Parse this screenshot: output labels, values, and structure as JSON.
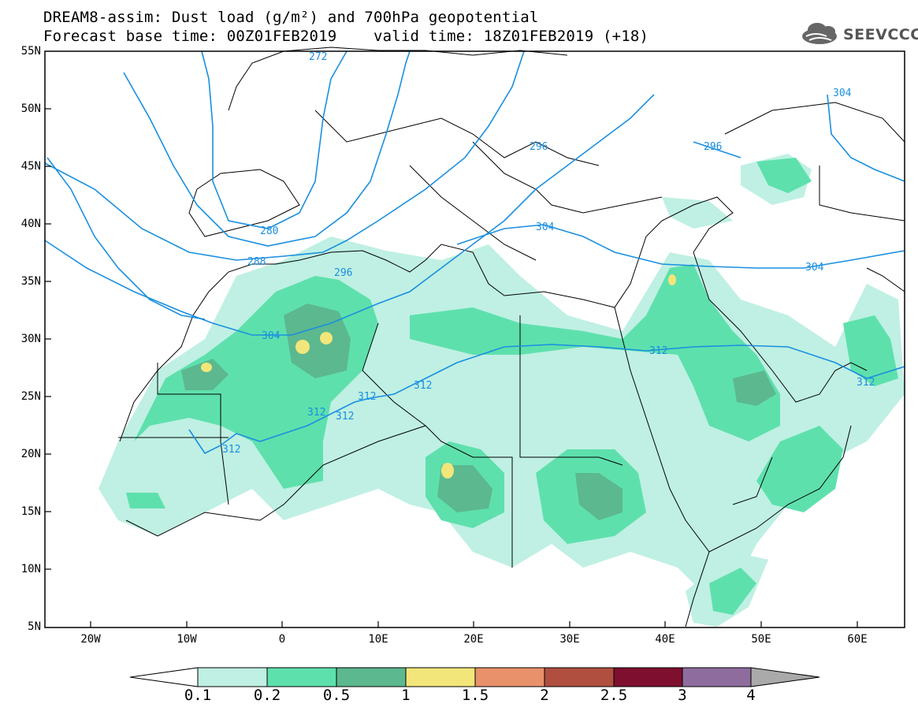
{
  "header": {
    "title_line1": "DREAM8-assim: Dust load (g/m²) and 700hPa geopotential",
    "title_line2": "Forecast base time: 00Z01FEB2019    valid time: 18Z01FEB2019 (+18)",
    "logo_text": "SEEVCCC"
  },
  "axes": {
    "lat_labels": [
      "55N",
      "50N",
      "45N",
      "40N",
      "35N",
      "30N",
      "25N",
      "20N",
      "15N",
      "10N",
      "5N"
    ],
    "lon_labels": [
      "20W",
      "10W",
      "0",
      "10E",
      "20E",
      "30E",
      "40E",
      "50E",
      "60E"
    ]
  },
  "contours": {
    "labels": [
      "272",
      "280",
      "288",
      "296",
      "304",
      "304",
      "304",
      "312",
      "312",
      "312",
      "312",
      "312",
      "312",
      "312",
      "304",
      "296",
      "296"
    ]
  },
  "colorbar": {
    "labels": [
      "0.1",
      "0.2",
      "0.5",
      "1",
      "1.5",
      "2",
      "2.5",
      "3",
      "4"
    ],
    "colors": [
      "#bff0e3",
      "#5ee0ad",
      "#5cb88f",
      "#f2e67a",
      "#e8916a",
      "#b04f3f",
      "#7e0f2e",
      "#8e6d9e",
      "#aaaaaa"
    ]
  },
  "colors": {
    "contour": "#1a8fe0",
    "dust_01": "#bff0e3",
    "dust_02": "#5ee0ad",
    "dust_05": "#5cb88f",
    "dust_1": "#f2e67a"
  }
}
